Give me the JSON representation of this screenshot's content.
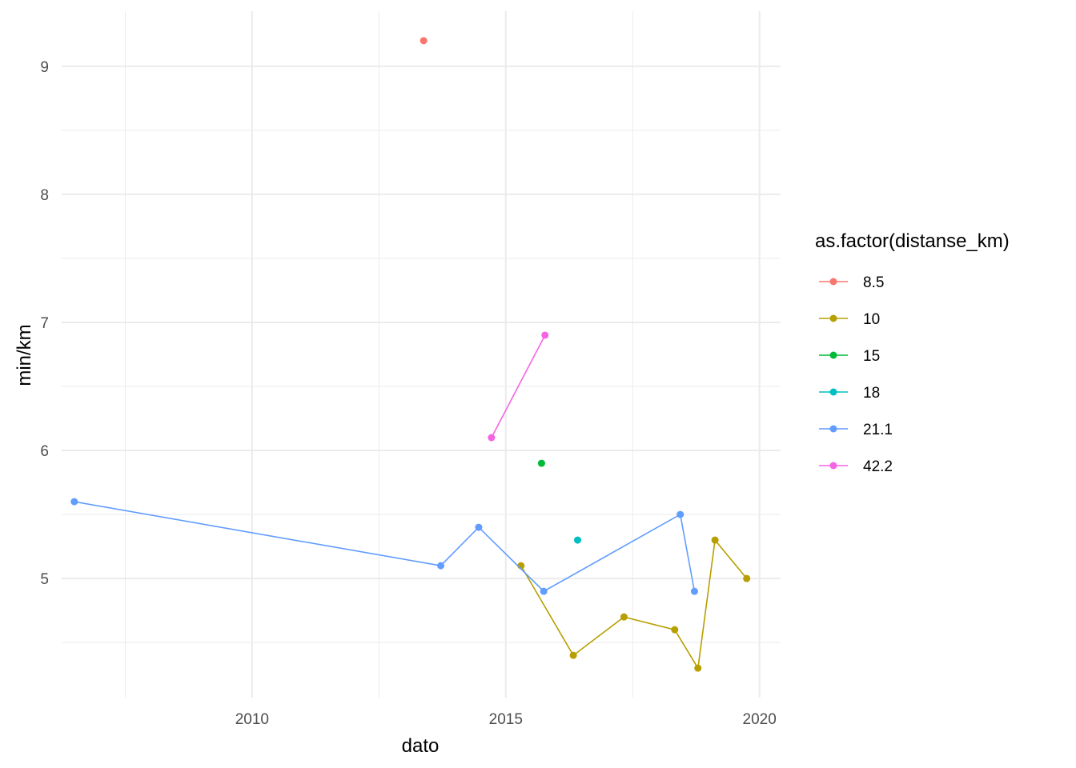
{
  "chart_data": {
    "type": "line",
    "xlabel": "dato",
    "ylabel": "min/km",
    "x_ticks": [
      "2010",
      "2015",
      "2020"
    ],
    "y_ticks": [
      "5",
      "6",
      "7",
      "8",
      "9"
    ],
    "xlim": [
      "2006-04-01",
      "2020-06-01"
    ],
    "ylim": [
      4.07,
      9.43
    ],
    "grid": true,
    "legend": {
      "title": "as.factor(distanse_km)",
      "position": "right"
    },
    "series": [
      {
        "name": "8.5",
        "color": "#F8766D",
        "points": [
          {
            "x": "2013-05-20",
            "y": 9.2
          }
        ]
      },
      {
        "name": "10",
        "color": "#B79F00",
        "points": [
          {
            "x": "2015-04-20",
            "y": 5.1
          },
          {
            "x": "2016-05-01",
            "y": 4.4
          },
          {
            "x": "2017-05-01",
            "y": 4.7
          },
          {
            "x": "2018-05-01",
            "y": 4.6
          },
          {
            "x": "2018-10-15",
            "y": 4.3
          },
          {
            "x": "2019-02-15",
            "y": 5.3
          },
          {
            "x": "2019-10-01",
            "y": 5.0
          }
        ]
      },
      {
        "name": "15",
        "color": "#00BA38",
        "points": [
          {
            "x": "2015-09-15",
            "y": 5.9
          }
        ]
      },
      {
        "name": "18",
        "color": "#00BFC4",
        "points": [
          {
            "x": "2016-06-01",
            "y": 5.3
          }
        ]
      },
      {
        "name": "21.1",
        "color": "#619CFF",
        "points": [
          {
            "x": "2006-07-01",
            "y": 5.6
          },
          {
            "x": "2013-09-20",
            "y": 5.1
          },
          {
            "x": "2014-06-20",
            "y": 5.4
          },
          {
            "x": "2015-10-01",
            "y": 4.9
          },
          {
            "x": "2018-06-10",
            "y": 5.5
          },
          {
            "x": "2018-09-20",
            "y": 4.9
          }
        ]
      },
      {
        "name": "42.2",
        "color": "#F564E3",
        "points": [
          {
            "x": "2014-09-20",
            "y": 6.1
          },
          {
            "x": "2015-10-10",
            "y": 6.9
          }
        ]
      }
    ]
  }
}
